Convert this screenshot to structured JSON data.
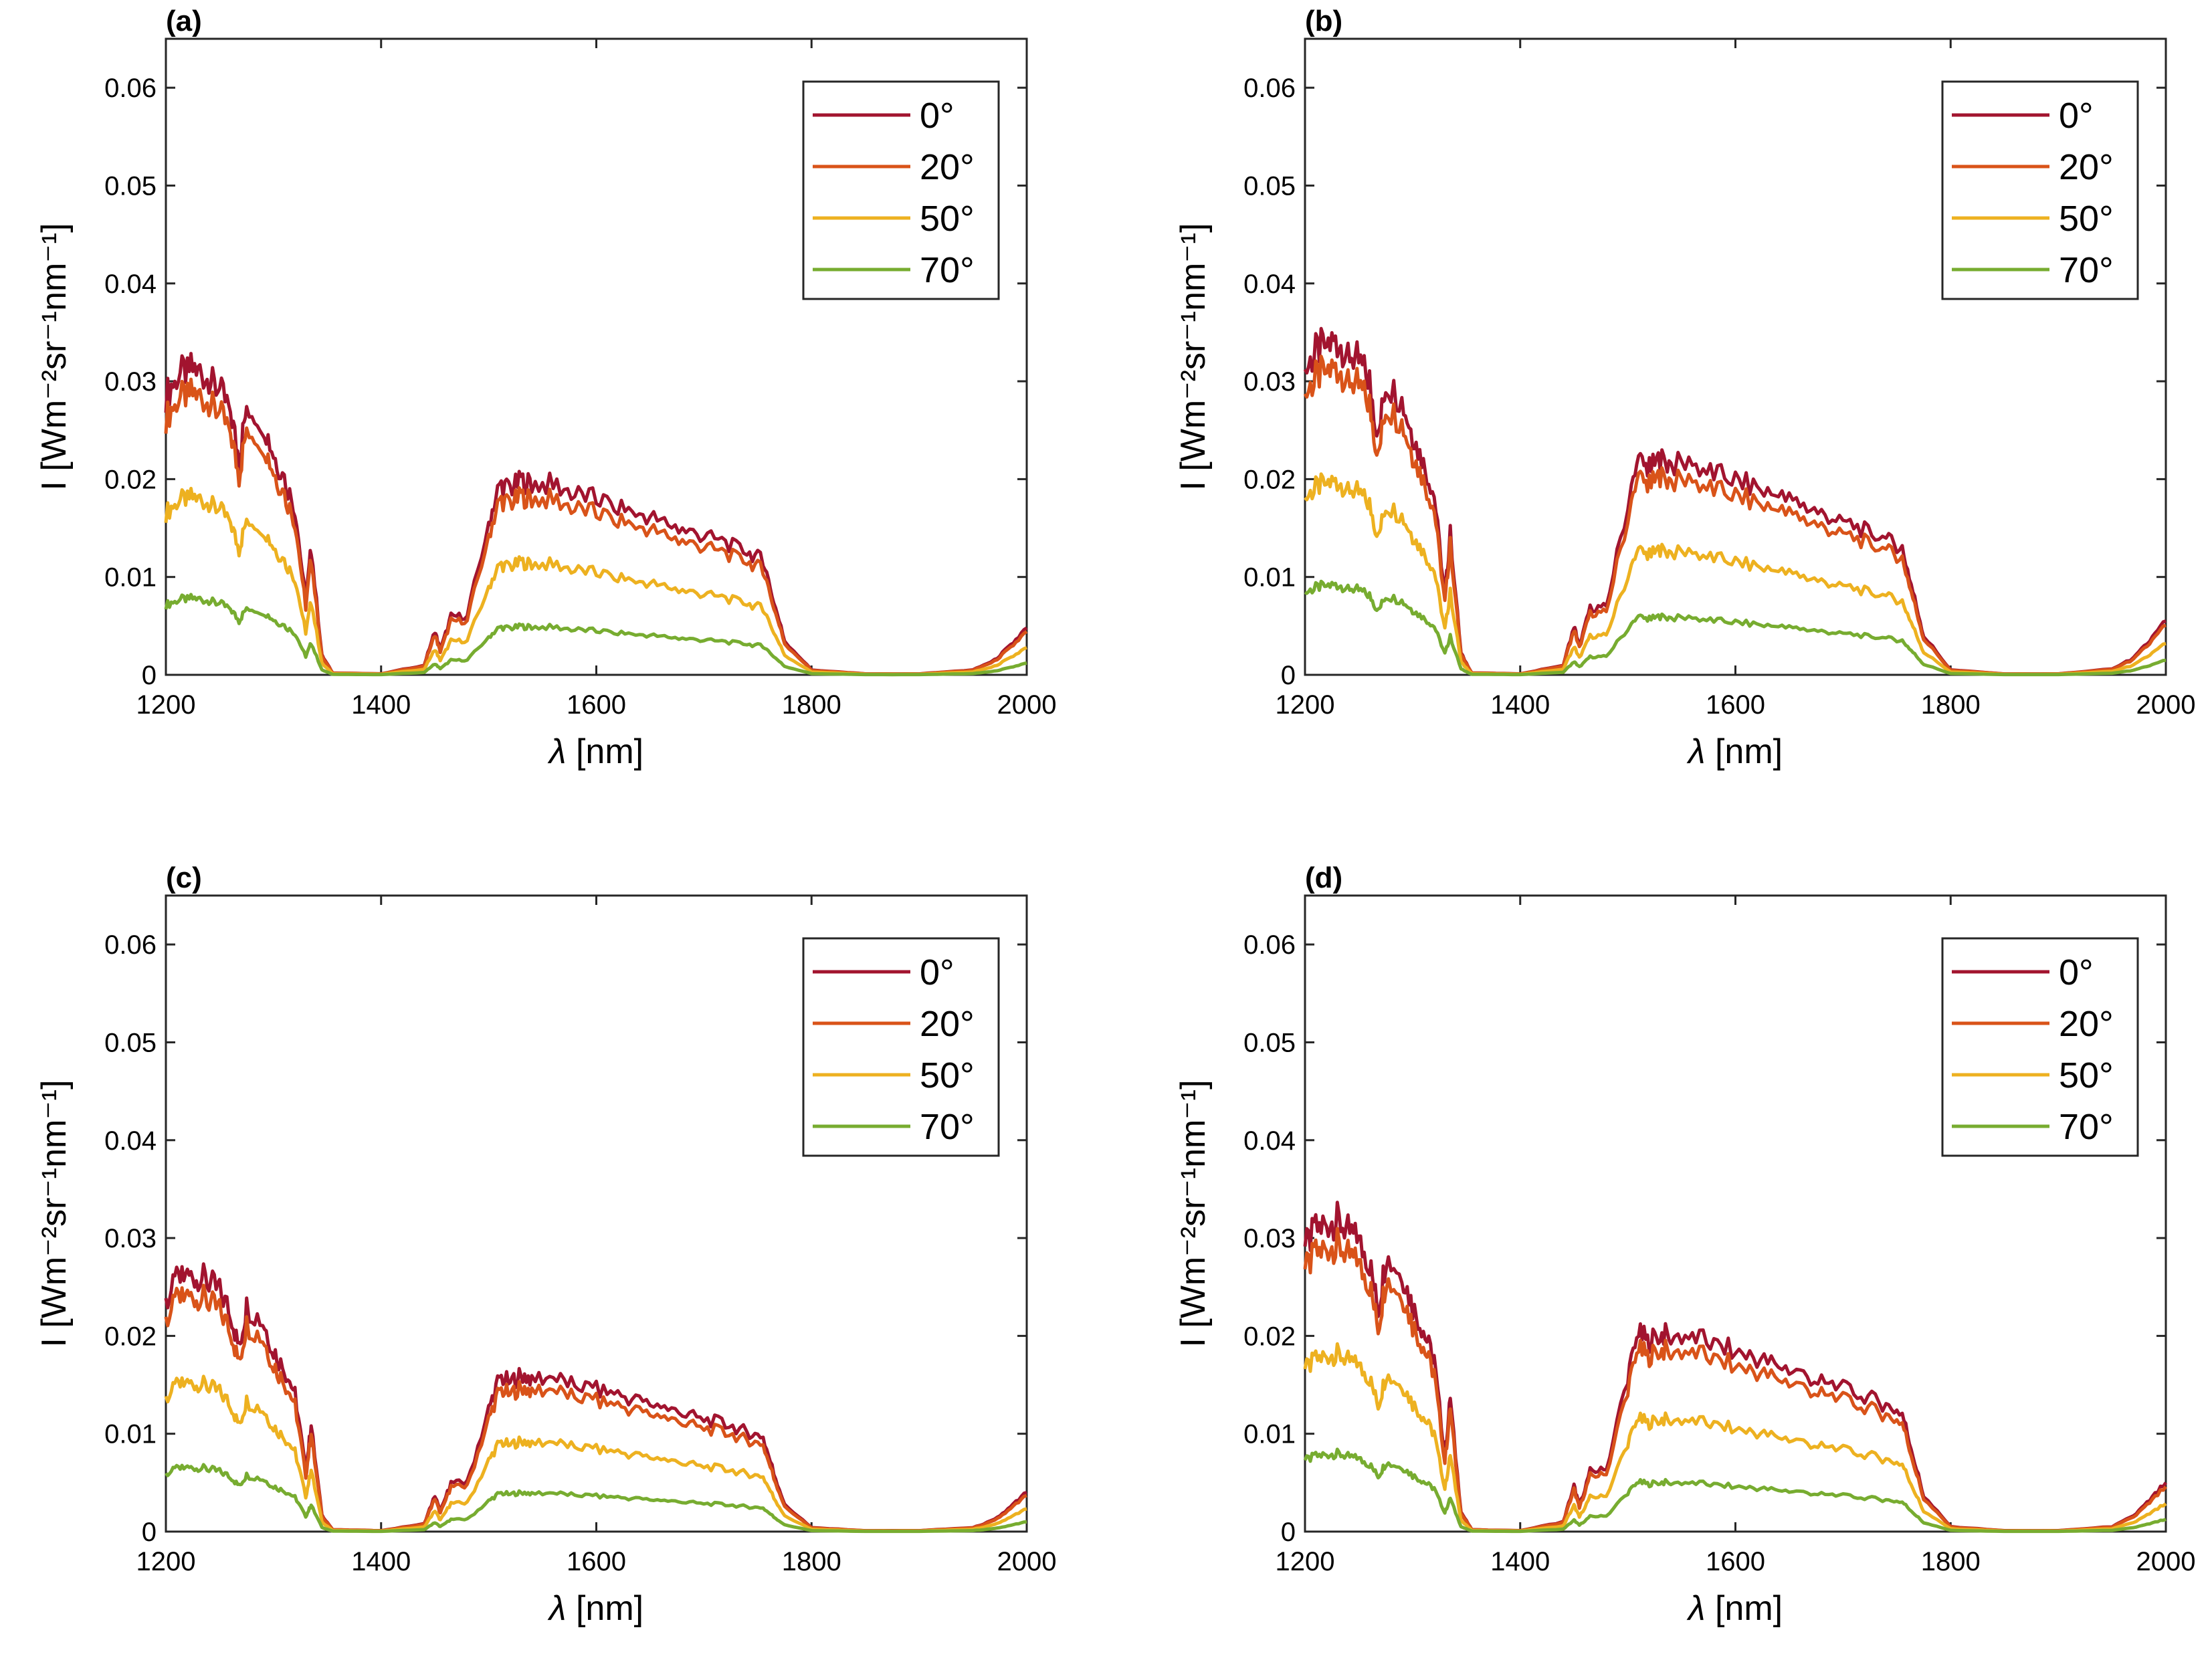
{
  "chart_data": [
    {
      "type": "line",
      "panel_label": "(a)",
      "xlabel": "[nm]",
      "xlabel_symbol": "λ",
      "ylabel": "I [Wm⁻²sr⁻¹nm⁻¹]",
      "xlim": [
        1200,
        2000
      ],
      "ylim": [
        0,
        0.065
      ],
      "xticks": [
        "1200",
        "1400",
        "1600",
        "1800",
        "2000"
      ],
      "yticks": [
        "0",
        "0.01",
        "0.02",
        "0.03",
        "0.04",
        "0.05",
        "0.06"
      ],
      "legend_position": "top-right",
      "x": [
        1200,
        1210,
        1220,
        1230,
        1240,
        1250,
        1260,
        1268,
        1275,
        1290,
        1300,
        1310,
        1320,
        1330,
        1335,
        1345,
        1355,
        1400,
        1440,
        1450,
        1455,
        1465,
        1480,
        1500,
        1510,
        1520,
        1530,
        1540,
        1560,
        1580,
        1600,
        1620,
        1640,
        1660,
        1680,
        1700,
        1720,
        1740,
        1755,
        1765,
        1775,
        1800,
        1850,
        1900,
        1950,
        1970,
        1985,
        2000
      ],
      "series": [
        {
          "name": "0°",
          "color": "#a2142f",
          "scale": 1.0
        },
        {
          "name": "20°",
          "color": "#d95319",
          "scale": 0.92
        },
        {
          "name": "50°",
          "color": "#edb120",
          "scale": 0.58
        },
        {
          "name": "70°",
          "color": "#77ac30",
          "scale": 0.25
        }
      ],
      "base_values": [
        0.0285,
        0.0305,
        0.0312,
        0.0313,
        0.03,
        0.029,
        0.027,
        0.022,
        0.0275,
        0.026,
        0.0225,
        0.02,
        0.017,
        0.0075,
        0.013,
        0.002,
        0.0002,
        0.0001,
        0.001,
        0.0045,
        0.0025,
        0.006,
        0.006,
        0.0155,
        0.0195,
        0.019,
        0.0198,
        0.0195,
        0.0195,
        0.0185,
        0.018,
        0.0172,
        0.0165,
        0.0158,
        0.0148,
        0.0142,
        0.0135,
        0.0125,
        0.0118,
        0.0075,
        0.0035,
        0.0005,
        0.0001,
        0.0001,
        0.0005,
        0.0015,
        0.003,
        0.0048
      ]
    },
    {
      "type": "line",
      "panel_label": "(b)",
      "xlabel": "[nm]",
      "xlabel_symbol": "λ",
      "ylabel": "I [Wm⁻²sr⁻¹nm⁻¹]",
      "xlim": [
        1200,
        2000
      ],
      "ylim": [
        0,
        0.065
      ],
      "xticks": [
        "1200",
        "1400",
        "1600",
        "1800",
        "2000"
      ],
      "yticks": [
        "0",
        "0.01",
        "0.02",
        "0.03",
        "0.04",
        "0.05",
        "0.06"
      ],
      "legend_position": "top-right",
      "x": [
        1200,
        1210,
        1220,
        1230,
        1240,
        1250,
        1260,
        1268,
        1275,
        1290,
        1300,
        1310,
        1320,
        1330,
        1335,
        1345,
        1355,
        1400,
        1440,
        1450,
        1455,
        1465,
        1480,
        1500,
        1510,
        1520,
        1530,
        1540,
        1560,
        1580,
        1600,
        1620,
        1640,
        1660,
        1680,
        1700,
        1720,
        1740,
        1755,
        1765,
        1775,
        1800,
        1850,
        1900,
        1950,
        1970,
        1985,
        2000
      ],
      "series": [
        {
          "name": "0°",
          "color": "#a2142f",
          "scale": 1.0
        },
        {
          "name": "20°",
          "color": "#d95319",
          "scale": 0.92
        },
        {
          "name": "50°",
          "color": "#edb120",
          "scale": 0.58
        },
        {
          "name": "70°",
          "color": "#77ac30",
          "scale": 0.27
        }
      ],
      "base_values": [
        0.031,
        0.033,
        0.0338,
        0.034,
        0.033,
        0.032,
        0.03,
        0.024,
        0.03,
        0.028,
        0.0245,
        0.0215,
        0.0185,
        0.008,
        0.0145,
        0.0022,
        0.0002,
        0.0001,
        0.001,
        0.005,
        0.003,
        0.0068,
        0.007,
        0.0175,
        0.0218,
        0.021,
        0.022,
        0.0215,
        0.0215,
        0.0205,
        0.02,
        0.019,
        0.0182,
        0.0175,
        0.0165,
        0.0157,
        0.0148,
        0.0138,
        0.013,
        0.0085,
        0.004,
        0.0005,
        0.0001,
        0.0001,
        0.0006,
        0.0017,
        0.0035,
        0.0055
      ]
    },
    {
      "type": "line",
      "panel_label": "(c)",
      "xlabel": "[nm]",
      "xlabel_symbol": "λ",
      "ylabel": "I [Wm⁻²sr⁻¹nm⁻¹]",
      "xlim": [
        1200,
        2000
      ],
      "ylim": [
        0,
        0.065
      ],
      "xticks": [
        "1200",
        "1400",
        "1600",
        "1800",
        "2000"
      ],
      "yticks": [
        "0",
        "0.01",
        "0.02",
        "0.03",
        "0.04",
        "0.05",
        "0.06"
      ],
      "legend_position": "top-right",
      "x": [
        1200,
        1210,
        1220,
        1230,
        1240,
        1250,
        1260,
        1268,
        1275,
        1290,
        1300,
        1310,
        1320,
        1330,
        1335,
        1345,
        1355,
        1400,
        1440,
        1450,
        1455,
        1465,
        1480,
        1500,
        1510,
        1520,
        1530,
        1540,
        1560,
        1580,
        1600,
        1620,
        1640,
        1660,
        1680,
        1700,
        1720,
        1740,
        1755,
        1765,
        1775,
        1800,
        1850,
        1900,
        1950,
        1970,
        1985,
        2000
      ],
      "series": [
        {
          "name": "0°",
          "color": "#a2142f",
          "scale": 1.0
        },
        {
          "name": "20°",
          "color": "#d95319",
          "scale": 0.92
        },
        {
          "name": "50°",
          "color": "#edb120",
          "scale": 0.58
        },
        {
          "name": "70°",
          "color": "#77ac30",
          "scale": 0.25
        }
      ],
      "base_values": [
        0.0235,
        0.0255,
        0.026,
        0.0262,
        0.0255,
        0.0245,
        0.0225,
        0.0185,
        0.023,
        0.0215,
        0.0185,
        0.0165,
        0.0142,
        0.0062,
        0.0108,
        0.0017,
        0.0002,
        0.0001,
        0.0008,
        0.0037,
        0.002,
        0.005,
        0.005,
        0.0125,
        0.0158,
        0.0153,
        0.016,
        0.0157,
        0.0157,
        0.015,
        0.0145,
        0.014,
        0.0133,
        0.0128,
        0.012,
        0.0115,
        0.011,
        0.0102,
        0.0096,
        0.006,
        0.0028,
        0.0004,
        0.0001,
        0.0001,
        0.0004,
        0.0012,
        0.0025,
        0.004
      ]
    },
    {
      "type": "line",
      "panel_label": "(d)",
      "xlabel": "[nm]",
      "xlabel_symbol": "λ",
      "ylabel": "I [Wm⁻²sr⁻¹nm⁻¹]",
      "xlim": [
        1200,
        2000
      ],
      "ylim": [
        0,
        0.065
      ],
      "xticks": [
        "1200",
        "1400",
        "1600",
        "1800",
        "2000"
      ],
      "yticks": [
        "0",
        "0.01",
        "0.02",
        "0.03",
        "0.04",
        "0.05",
        "0.06"
      ],
      "legend_position": "top-right",
      "x": [
        1200,
        1210,
        1220,
        1230,
        1240,
        1250,
        1260,
        1268,
        1275,
        1290,
        1300,
        1310,
        1320,
        1330,
        1335,
        1345,
        1355,
        1400,
        1440,
        1450,
        1455,
        1465,
        1480,
        1500,
        1510,
        1520,
        1530,
        1540,
        1560,
        1580,
        1600,
        1620,
        1640,
        1660,
        1680,
        1700,
        1720,
        1740,
        1755,
        1765,
        1775,
        1800,
        1850,
        1900,
        1950,
        1970,
        1985,
        2000
      ],
      "series": [
        {
          "name": "0°",
          "color": "#a2142f",
          "scale": 1.0
        },
        {
          "name": "20°",
          "color": "#d95319",
          "scale": 0.92
        },
        {
          "name": "50°",
          "color": "#edb120",
          "scale": 0.57
        },
        {
          "name": "70°",
          "color": "#77ac30",
          "scale": 0.25
        }
      ],
      "base_values": [
        0.029,
        0.0308,
        0.0315,
        0.0318,
        0.0308,
        0.0295,
        0.0275,
        0.0225,
        0.028,
        0.0265,
        0.023,
        0.0205,
        0.0175,
        0.0078,
        0.0135,
        0.002,
        0.0002,
        0.0001,
        0.001,
        0.0047,
        0.0026,
        0.0062,
        0.0063,
        0.016,
        0.0202,
        0.0195,
        0.0202,
        0.02,
        0.02,
        0.019,
        0.0185,
        0.0177,
        0.017,
        0.0162,
        0.0152,
        0.0146,
        0.0139,
        0.0129,
        0.0121,
        0.0078,
        0.0036,
        0.0005,
        0.0001,
        0.0001,
        0.0005,
        0.0016,
        0.0032,
        0.005
      ]
    }
  ]
}
